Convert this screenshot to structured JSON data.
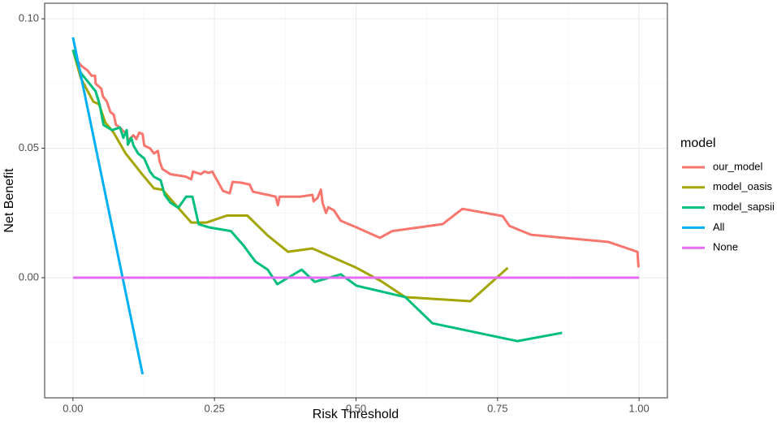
{
  "chart_data": {
    "type": "line",
    "xlabel": "Risk Threshold",
    "ylabel": "Net Benefit",
    "legend_title": "model",
    "legend_position": "right",
    "xlim": [
      -0.05,
      1.05
    ],
    "ylim": [
      -0.0464,
      0.106
    ],
    "xticks": [
      {
        "value": 0,
        "label": "0.00"
      },
      {
        "value": 0.25,
        "label": "0.25"
      },
      {
        "value": 0.5,
        "label": "0.50"
      },
      {
        "value": 0.75,
        "label": "0.75"
      },
      {
        "value": 1,
        "label": "1.00"
      }
    ],
    "yticks": [
      {
        "value": 0,
        "label": "0.00"
      },
      {
        "value": 0.05,
        "label": "0.05"
      },
      {
        "value": 0.1,
        "label": "0.10"
      }
    ],
    "grid": true,
    "minor_grid": true,
    "series": [
      {
        "name": "our_model",
        "color": "#F8766D",
        "x": [
          0,
          0.004,
          0.014,
          0.026,
          0.033,
          0.039,
          0.04,
          0.05,
          0.053,
          0.06,
          0.066,
          0.072,
          0.076,
          0.083,
          0.089,
          0.095,
          0.097,
          0.107,
          0.112,
          0.117,
          0.123,
          0.126,
          0.136,
          0.143,
          0.15,
          0.153,
          0.158,
          0.172,
          0.2,
          0.209,
          0.212,
          0.226,
          0.232,
          0.24,
          0.246,
          0.265,
          0.277,
          0.282,
          0.297,
          0.312,
          0.318,
          0.344,
          0.358,
          0.362,
          0.365,
          0.401,
          0.423,
          0.425,
          0.432,
          0.438,
          0.441,
          0.447,
          0.451,
          0.461,
          0.473,
          0.501,
          0.542,
          0.564,
          0.653,
          0.688,
          0.759,
          0.771,
          0.809,
          0.946,
          0.997,
          0.999
        ],
        "values": [
          0.088,
          0.085,
          0.082,
          0.08,
          0.078,
          0.078,
          0.075,
          0.073,
          0.07,
          0.068,
          0.064,
          0.063,
          0.059,
          0.058,
          0.0565,
          0.056,
          0.053,
          0.055,
          0.0535,
          0.056,
          0.0555,
          0.051,
          0.05,
          0.048,
          0.049,
          0.045,
          0.042,
          0.04,
          0.039,
          0.038,
          0.041,
          0.04,
          0.041,
          0.0405,
          0.041,
          0.0335,
          0.0326,
          0.037,
          0.0367,
          0.036,
          0.0332,
          0.032,
          0.0313,
          0.028,
          0.0313,
          0.0313,
          0.032,
          0.0295,
          0.0308,
          0.034,
          0.0288,
          0.025,
          0.0272,
          0.026,
          0.022,
          0.0194,
          0.0154,
          0.018,
          0.0207,
          0.0266,
          0.0238,
          0.02,
          0.0166,
          0.0138,
          0.01,
          0.004
        ]
      },
      {
        "name": "model_oasis",
        "color": "#A3A500",
        "x": [
          0,
          0.014,
          0.036,
          0.046,
          0.057,
          0.072,
          0.093,
          0.122,
          0.143,
          0.158,
          0.186,
          0.209,
          0.236,
          0.272,
          0.308,
          0.344,
          0.38,
          0.423,
          0.501,
          0.544,
          0.587,
          0.702,
          0.768
        ],
        "values": [
          0.088,
          0.077,
          0.068,
          0.067,
          0.06,
          0.056,
          0.048,
          0.04,
          0.0345,
          0.034,
          0.027,
          0.0213,
          0.0213,
          0.024,
          0.024,
          0.0163,
          0.01,
          0.0113,
          0.0038,
          -0.0013,
          -0.0075,
          -0.0091,
          0.0038
        ]
      },
      {
        "name": "model_sapsii",
        "color": "#00BF7D",
        "x": [
          0,
          0.014,
          0.029,
          0.04,
          0.047,
          0.054,
          0.069,
          0.083,
          0.089,
          0.095,
          0.097,
          0.103,
          0.107,
          0.115,
          0.126,
          0.136,
          0.143,
          0.155,
          0.162,
          0.172,
          0.186,
          0.2,
          0.211,
          0.222,
          0.241,
          0.279,
          0.301,
          0.322,
          0.344,
          0.361,
          0.404,
          0.427,
          0.473,
          0.501,
          0.587,
          0.635,
          0.785,
          0.864
        ],
        "values": [
          0.088,
          0.079,
          0.075,
          0.072,
          0.067,
          0.059,
          0.057,
          0.058,
          0.054,
          0.057,
          0.0514,
          0.054,
          0.051,
          0.048,
          0.046,
          0.041,
          0.039,
          0.0376,
          0.032,
          0.029,
          0.027,
          0.0313,
          0.0313,
          0.0207,
          0.0194,
          0.018,
          0.0125,
          0.0063,
          0.0031,
          -0.0025,
          0.0031,
          -0.0016,
          0.0013,
          -0.0031,
          -0.0075,
          -0.0176,
          -0.0245,
          -0.0213
        ]
      },
      {
        "name": "All",
        "color": "#00B0F6",
        "x": [
          0,
          0.123
        ],
        "values": [
          0.0928,
          -0.0373
        ]
      },
      {
        "name": "None",
        "color": "#E76BF3",
        "x": [
          0,
          1
        ],
        "values": [
          0,
          0
        ]
      }
    ]
  }
}
